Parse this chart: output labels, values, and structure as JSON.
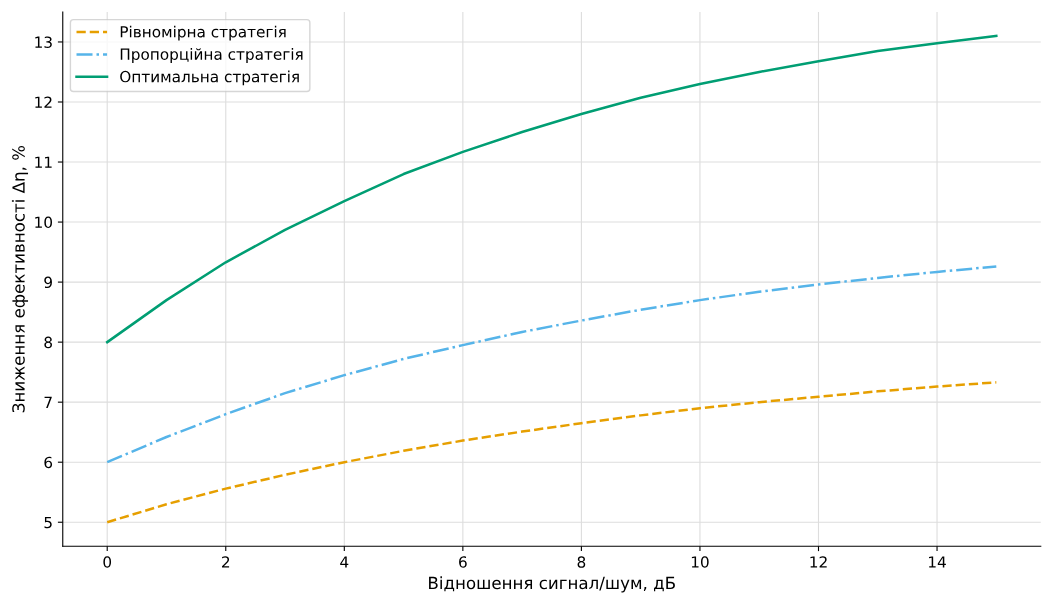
{
  "chart_data": {
    "type": "line",
    "xlabel": "Відношення сигнал/шум, дБ",
    "ylabel": "Зниження ефективності Δη, %",
    "x": [
      0,
      1,
      2,
      3,
      4,
      5,
      6,
      7,
      8,
      9,
      10,
      11,
      12,
      13,
      14,
      15
    ],
    "series": [
      {
        "name": "Рівномірна стратегія",
        "color": "#e69f00",
        "line_style": "dashed",
        "values": [
          5.0,
          5.3,
          5.56,
          5.79,
          6.0,
          6.19,
          6.36,
          6.51,
          6.65,
          6.78,
          6.9,
          7.0,
          7.09,
          7.18,
          7.26,
          7.33
        ]
      },
      {
        "name": "Пропорційна стратегія",
        "color": "#56b4e9",
        "line_style": "dashdot",
        "values": [
          6.0,
          6.42,
          6.8,
          7.15,
          7.45,
          7.72,
          7.95,
          8.17,
          8.36,
          8.54,
          8.7,
          8.84,
          8.96,
          9.07,
          9.17,
          9.26
        ]
      },
      {
        "name": "Оптимальна стратегія",
        "color": "#009e73",
        "line_style": "solid",
        "values": [
          8.0,
          8.7,
          9.33,
          9.87,
          10.35,
          10.8,
          11.17,
          11.5,
          11.8,
          12.07,
          12.3,
          12.5,
          12.68,
          12.85,
          12.98,
          13.1
        ]
      }
    ],
    "xlim": [
      -0.75,
      15.75
    ],
    "ylim": [
      4.6,
      13.5
    ],
    "xticks": [
      0,
      2,
      4,
      6,
      8,
      10,
      12,
      14
    ],
    "yticks": [
      5,
      6,
      7,
      8,
      9,
      10,
      11,
      12,
      13
    ],
    "grid": true,
    "legend": "top left"
  }
}
